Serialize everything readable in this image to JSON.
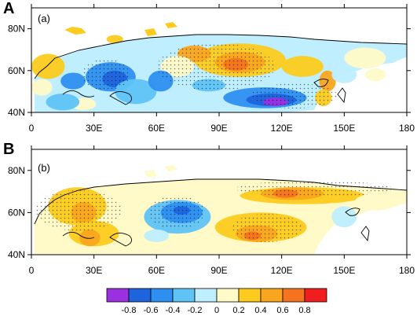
{
  "panels": [
    {
      "letter": "A",
      "label": "(a)",
      "x_ticks": [
        "0",
        "30E",
        "60E",
        "90E",
        "120E",
        "150E",
        "180"
      ],
      "y_ticks": [
        "80N",
        "60N",
        "40N"
      ]
    },
    {
      "letter": "B",
      "label": "(b)",
      "x_ticks": [
        "0",
        "30E",
        "60E",
        "90E",
        "120E",
        "150E",
        "180"
      ],
      "y_ticks": [
        "80N",
        "60N",
        "40N"
      ]
    }
  ],
  "colorbar": {
    "labels": [
      "-0.8",
      "-0.6",
      "-0.4",
      "-0.2",
      "0",
      "0.2",
      "0.4",
      "0.6",
      "0.8"
    ],
    "colors": [
      "#9b30e0",
      "#1e64dc",
      "#2d8ff0",
      "#5fc3f5",
      "#bfeeff",
      "#fffac8",
      "#fccb1e",
      "#faa51e",
      "#f5731e",
      "#f01e1e"
    ]
  },
  "fields": {
    "a": [
      {
        "c": 6,
        "lon": 100,
        "lat": 65,
        "rx": 22,
        "ry": 8
      },
      {
        "c": 7,
        "lon": 100,
        "lat": 64,
        "rx": 12,
        "ry": 5
      },
      {
        "c": 8,
        "lon": 98,
        "lat": 63,
        "rx": 6,
        "ry": 3
      },
      {
        "c": 7,
        "lon": 78,
        "lat": 68,
        "rx": 8,
        "ry": 4
      },
      {
        "c": 6,
        "lon": 130,
        "lat": 62,
        "rx": 10,
        "ry": 5
      },
      {
        "c": 7,
        "lon": 142,
        "lat": 55,
        "rx": 4,
        "ry": 5
      },
      {
        "c": 6,
        "lon": 140,
        "lat": 47,
        "rx": 4,
        "ry": 4
      },
      {
        "c": 5,
        "lon": 160,
        "lat": 66,
        "rx": 10,
        "ry": 5
      },
      {
        "c": 5,
        "lon": 165,
        "lat": 58,
        "rx": 5,
        "ry": 3
      },
      {
        "c": 5,
        "lon": 70,
        "lat": 62,
        "rx": 8,
        "ry": 5
      },
      {
        "c": 6,
        "lon": 8,
        "lat": 62,
        "rx": 8,
        "ry": 6
      },
      {
        "c": 5,
        "lon": 5,
        "lat": 52,
        "rx": 5,
        "ry": 4
      },
      {
        "c": 6,
        "lon": 40,
        "lat": 75,
        "rx": 4,
        "ry": 2
      },
      {
        "c": 5,
        "lon": 25,
        "lat": 44,
        "rx": 6,
        "ry": 3
      },
      {
        "c": 2,
        "lon": 38,
        "lat": 57,
        "rx": 12,
        "ry": 7
      },
      {
        "c": 1,
        "lon": 40,
        "lat": 56,
        "rx": 6,
        "ry": 4
      },
      {
        "c": 3,
        "lon": 50,
        "lat": 50,
        "rx": 10,
        "ry": 6
      },
      {
        "c": 2,
        "lon": 20,
        "lat": 55,
        "rx": 6,
        "ry": 4
      },
      {
        "c": 3,
        "lon": 15,
        "lat": 45,
        "rx": 8,
        "ry": 4
      },
      {
        "c": 2,
        "lon": 62,
        "lat": 55,
        "rx": 6,
        "ry": 5
      },
      {
        "c": 2,
        "lon": 112,
        "lat": 47,
        "rx": 20,
        "ry": 5
      },
      {
        "c": 1,
        "lon": 115,
        "lat": 46,
        "rx": 12,
        "ry": 3
      },
      {
        "c": 0,
        "lon": 117,
        "lat": 45,
        "rx": 6,
        "ry": 2
      },
      {
        "c": 3,
        "lon": 85,
        "lat": 53,
        "rx": 8,
        "ry": 3
      },
      {
        "c": 4,
        "lon": 150,
        "lat": 58,
        "rx": 6,
        "ry": 4
      }
    ],
    "b": [
      {
        "c": 6,
        "lon": 22,
        "lat": 63,
        "rx": 14,
        "ry": 9
      },
      {
        "c": 7,
        "lon": 25,
        "lat": 60,
        "rx": 6,
        "ry": 5
      },
      {
        "c": 6,
        "lon": 30,
        "lat": 50,
        "rx": 12,
        "ry": 6
      },
      {
        "c": 7,
        "lon": 28,
        "lat": 48,
        "rx": 5,
        "ry": 4
      },
      {
        "c": 6,
        "lon": 130,
        "lat": 68,
        "rx": 30,
        "ry": 4
      },
      {
        "c": 7,
        "lon": 125,
        "lat": 69,
        "rx": 15,
        "ry": 3
      },
      {
        "c": 8,
        "lon": 122,
        "lat": 69,
        "rx": 6,
        "ry": 2
      },
      {
        "c": 6,
        "lon": 110,
        "lat": 53,
        "rx": 22,
        "ry": 7
      },
      {
        "c": 7,
        "lon": 108,
        "lat": 50,
        "rx": 10,
        "ry": 4
      },
      {
        "c": 8,
        "lon": 106,
        "lat": 49,
        "rx": 4,
        "ry": 2
      },
      {
        "c": 3,
        "lon": 70,
        "lat": 58,
        "rx": 16,
        "ry": 8
      },
      {
        "c": 2,
        "lon": 72,
        "lat": 60,
        "rx": 10,
        "ry": 5
      },
      {
        "c": 1,
        "lon": 72,
        "lat": 61,
        "rx": 4,
        "ry": 2
      },
      {
        "c": 4,
        "lon": 60,
        "lat": 49,
        "rx": 6,
        "ry": 3
      },
      {
        "c": 4,
        "lon": 150,
        "lat": 58,
        "rx": 6,
        "ry": 5
      },
      {
        "c": 5,
        "lon": 165,
        "lat": 65,
        "rx": 10,
        "ry": 4
      }
    ]
  }
}
